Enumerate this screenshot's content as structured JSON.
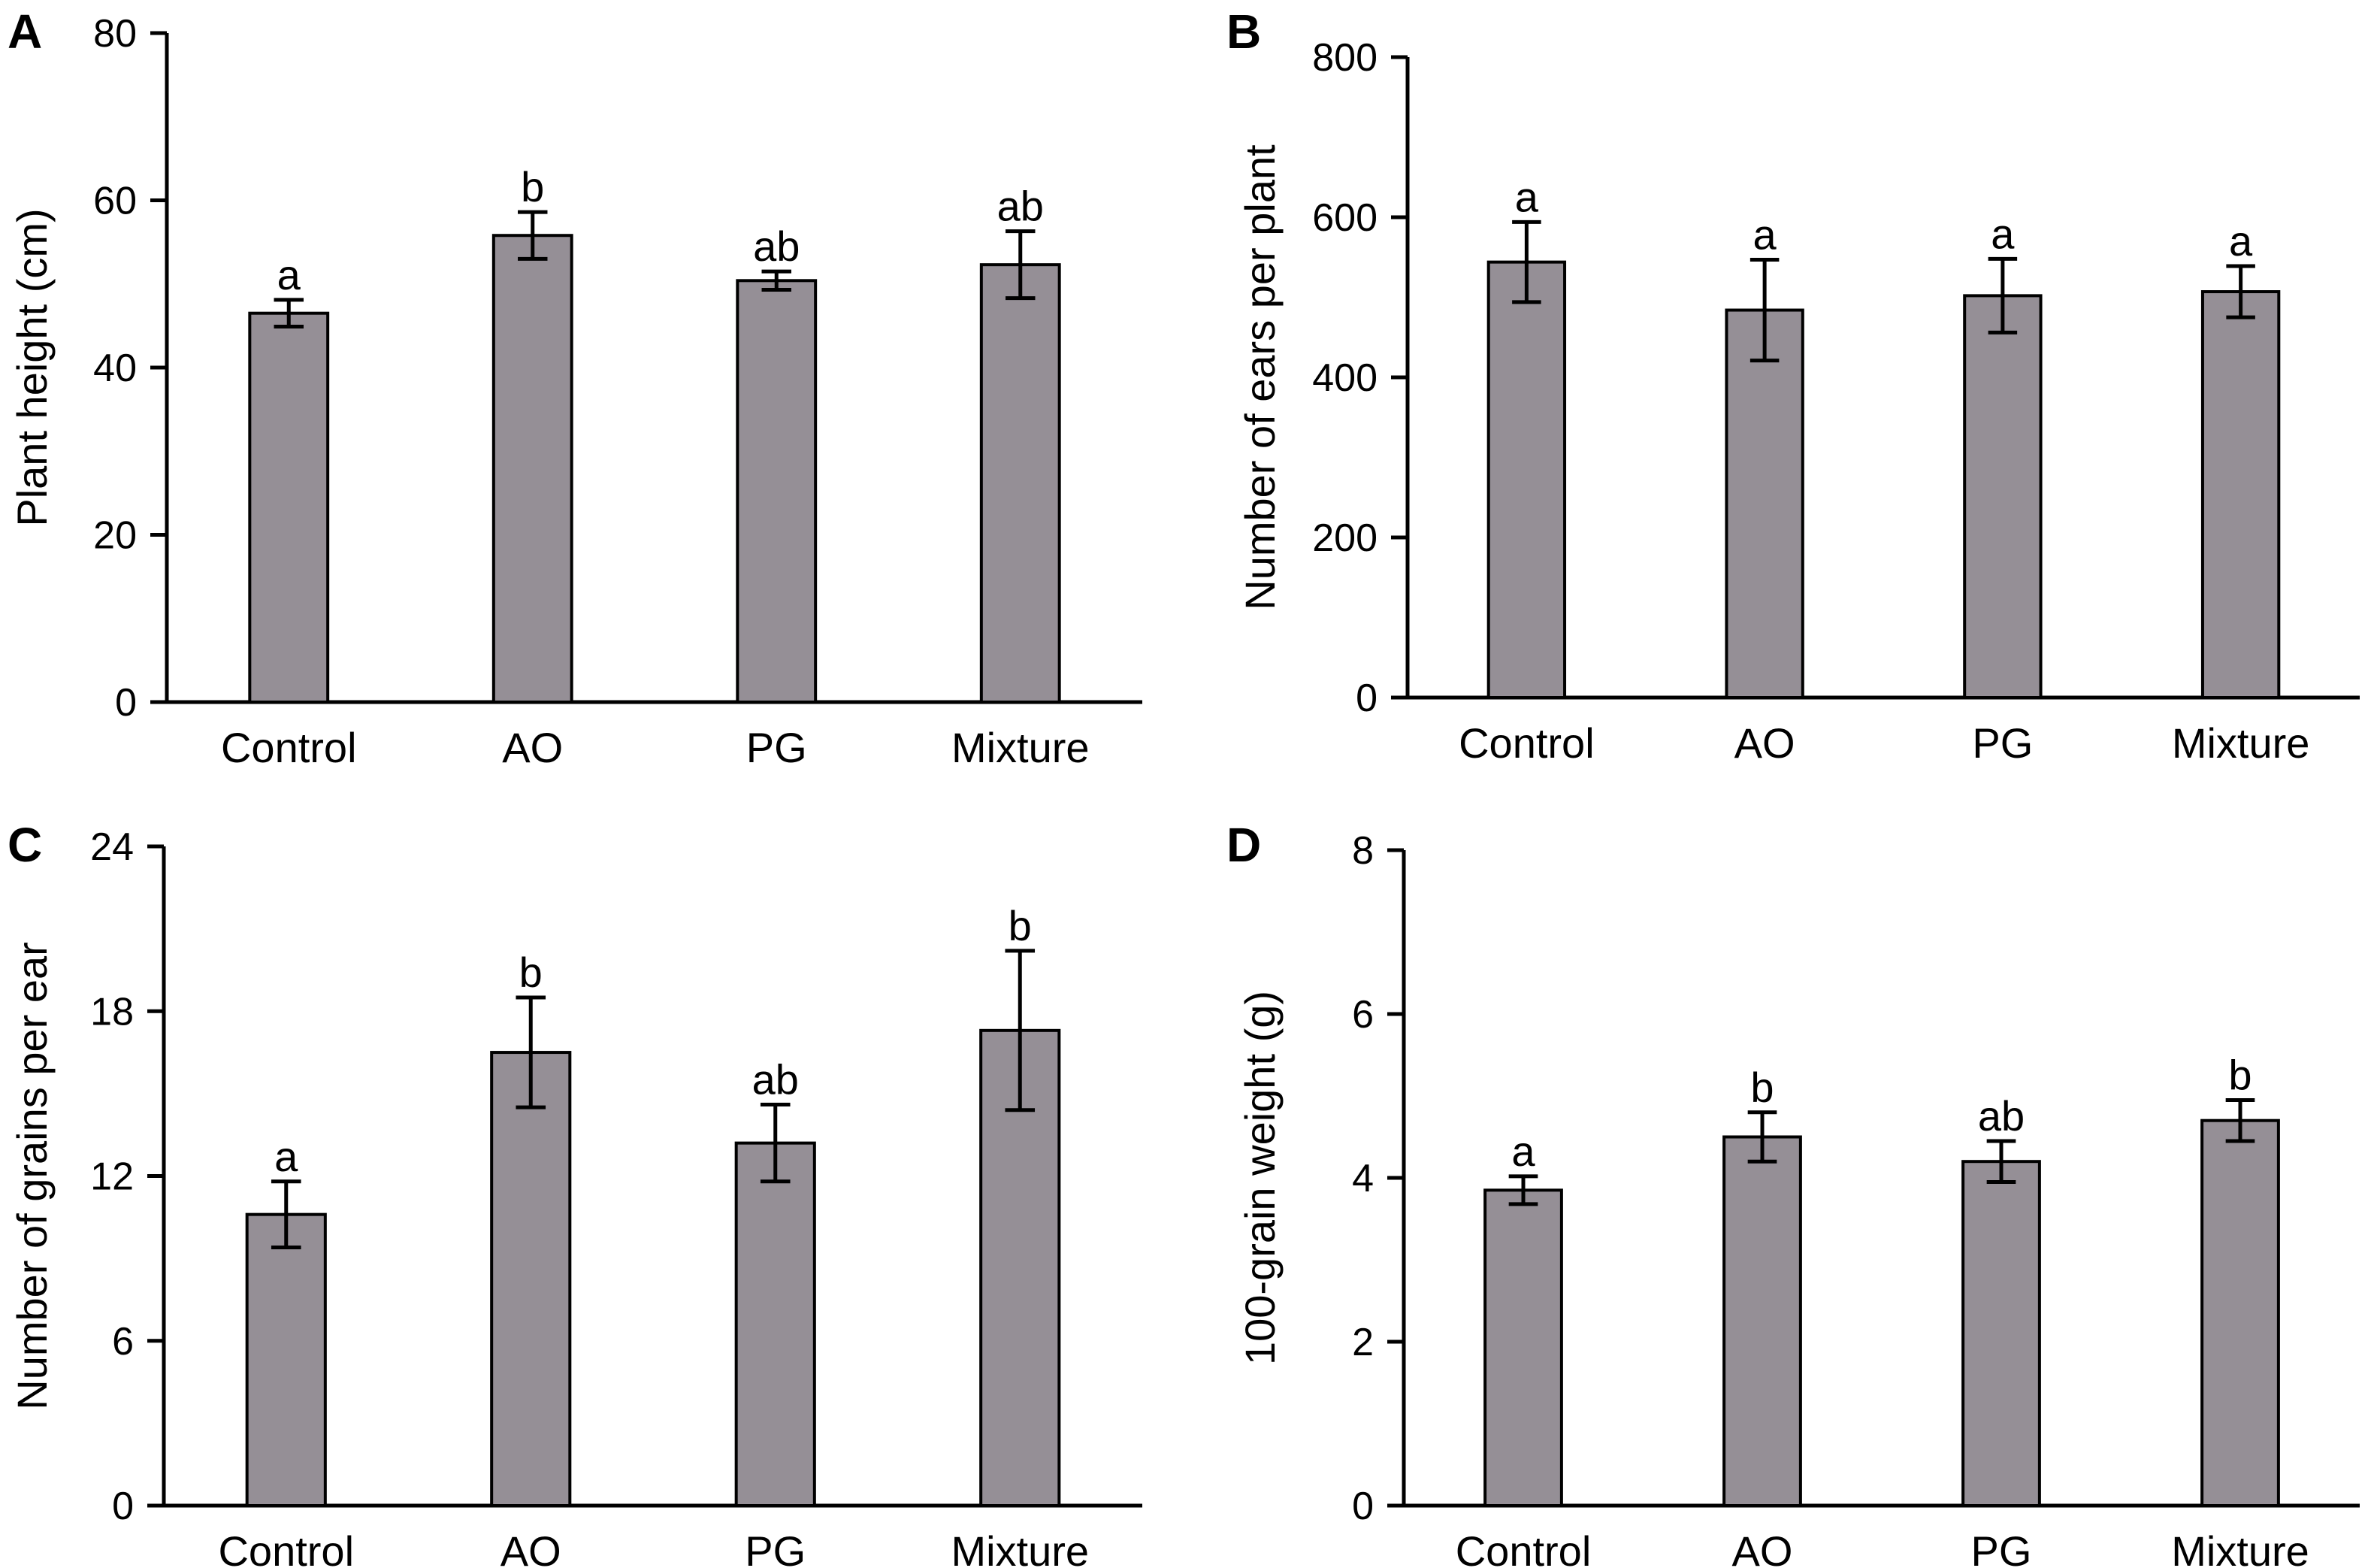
{
  "style": {
    "bar_fill": "#958f96",
    "bar_stroke": "#000000",
    "axis_color": "#000000"
  },
  "chart_data": [
    {
      "type": "bar",
      "panel": "A",
      "categories": [
        "Control",
        "AO",
        "PG",
        "Mixture"
      ],
      "values": [
        46.5,
        55.8,
        50.4,
        52.3
      ],
      "errors": [
        1.6,
        2.8,
        1.1,
        4.0
      ],
      "significance": [
        "a",
        "b",
        "ab",
        "ab"
      ],
      "ylabel": "Plant height (cm)",
      "ylim": [
        0,
        80
      ],
      "yticks": [
        0,
        20,
        40,
        60,
        80
      ],
      "ytick_labels": [
        "0",
        "20",
        "40",
        "60",
        "80"
      ],
      "grid": false
    },
    {
      "type": "bar",
      "panel": "B",
      "categories": [
        "Control",
        "AO",
        "PG",
        "Mixture"
      ],
      "values": [
        544,
        484,
        502,
        507
      ],
      "errors": [
        50,
        63,
        46,
        32
      ],
      "significance": [
        "a",
        "a",
        "a",
        "a"
      ],
      "ylabel": "Number of ears per plant",
      "ylim": [
        0,
        800
      ],
      "yticks": [
        0,
        200,
        400,
        600,
        800
      ],
      "ytick_labels": [
        "0",
        "200",
        "400",
        "600",
        "800"
      ],
      "grid": false
    },
    {
      "type": "bar",
      "panel": "C",
      "categories": [
        "Control",
        "AO",
        "PG",
        "Mixture"
      ],
      "values": [
        10.6,
        16.5,
        13.2,
        17.3
      ],
      "errors": [
        1.2,
        2.0,
        1.4,
        2.9
      ],
      "significance": [
        "a",
        "b",
        "ab",
        "b"
      ],
      "ylabel": "Number of grains per ear",
      "ylim": [
        0,
        24
      ],
      "yticks": [
        0,
        6,
        12,
        18,
        24
      ],
      "ytick_labels": [
        "0",
        "6",
        "12",
        "18",
        "24"
      ],
      "grid": false
    },
    {
      "type": "bar",
      "panel": "D",
      "categories": [
        "Control",
        "AO",
        "PG",
        "Mixture"
      ],
      "values": [
        3.85,
        4.5,
        4.2,
        4.7
      ],
      "errors": [
        0.17,
        0.3,
        0.25,
        0.25
      ],
      "significance": [
        "a",
        "b",
        "ab",
        "b"
      ],
      "ylabel": "100-grain weight (g)",
      "ylim": [
        0,
        8
      ],
      "yticks": [
        0,
        2,
        4,
        6,
        8
      ],
      "ytick_labels": [
        "0",
        "2",
        "4",
        "6",
        "8"
      ],
      "grid": false
    }
  ]
}
